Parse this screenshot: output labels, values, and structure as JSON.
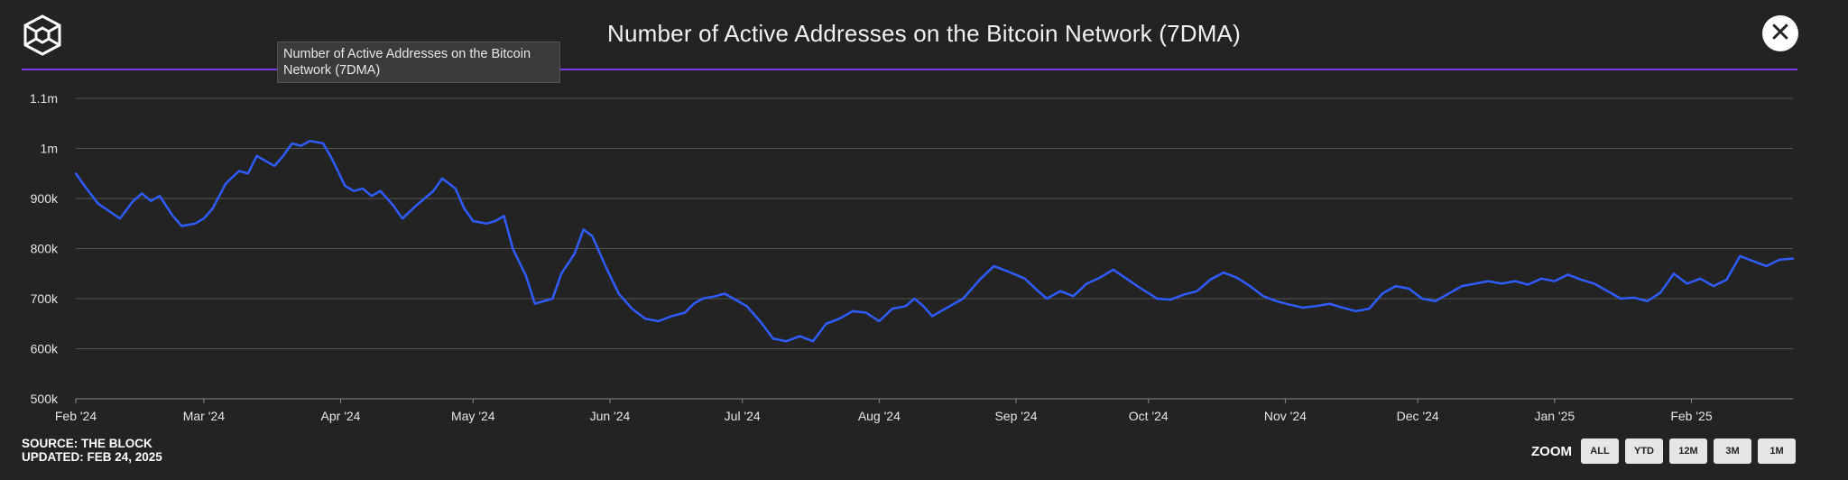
{
  "header": {
    "title": "Number of Active Addresses on the Bitcoin Network (7DMA)",
    "close_icon": "close-icon",
    "logo_icon": "the-block-logo-icon"
  },
  "tooltip": {
    "text": "Number of Active Addresses on the Bitcoin Network (7DMA)"
  },
  "footer": {
    "source": "SOURCE: THE BLOCK",
    "updated": "UPDATED: FEB 24, 2025",
    "zoom_label": "ZOOM",
    "zoom_buttons": [
      "ALL",
      "YTD",
      "12M",
      "3M",
      "1M"
    ]
  },
  "colors": {
    "line": "#2f5cff",
    "accent": "#7c3aed",
    "background": "#232323",
    "grid": "#555555"
  },
  "chart_data": {
    "type": "line",
    "title": "Number of Active Addresses on the Bitcoin Network (7DMA)",
    "xlabel": "",
    "ylabel": "",
    "ylim": [
      500000,
      1100000
    ],
    "ytick_values": [
      500000,
      600000,
      700000,
      800000,
      900000,
      1000000,
      1100000
    ],
    "ytick_labels": [
      "500k",
      "600k",
      "700k",
      "800k",
      "900k",
      "1m",
      "1.1m"
    ],
    "xlim": [
      "2024-02-01",
      "2025-02-24"
    ],
    "xtick_dates": [
      "2024-02-01",
      "2024-03-01",
      "2024-04-01",
      "2024-05-01",
      "2024-06-01",
      "2024-07-01",
      "2024-08-01",
      "2024-09-01",
      "2024-10-01",
      "2024-11-01",
      "2024-12-01",
      "2025-01-01",
      "2025-02-01"
    ],
    "xtick_labels": [
      "Feb '24",
      "Mar '24",
      "Apr '24",
      "May '24",
      "Jun '24",
      "Jul '24",
      "Aug '24",
      "Sep '24",
      "Oct '24",
      "Nov '24",
      "Dec '24",
      "Jan '25",
      "Feb '25"
    ],
    "grid": true,
    "series": [
      {
        "color": "#2f5cff",
        "points": [
          [
            "2024-02-01",
            950000
          ],
          [
            "2024-02-03",
            925000
          ],
          [
            "2024-02-06",
            890000
          ],
          [
            "2024-02-09",
            872000
          ],
          [
            "2024-02-11",
            860000
          ],
          [
            "2024-02-14",
            895000
          ],
          [
            "2024-02-16",
            910000
          ],
          [
            "2024-02-18",
            895000
          ],
          [
            "2024-02-20",
            905000
          ],
          [
            "2024-02-23",
            865000
          ],
          [
            "2024-02-25",
            845000
          ],
          [
            "2024-02-28",
            850000
          ],
          [
            "2024-03-01",
            860000
          ],
          [
            "2024-03-03",
            880000
          ],
          [
            "2024-03-06",
            930000
          ],
          [
            "2024-03-09",
            955000
          ],
          [
            "2024-03-11",
            950000
          ],
          [
            "2024-03-13",
            985000
          ],
          [
            "2024-03-15",
            975000
          ],
          [
            "2024-03-17",
            965000
          ],
          [
            "2024-03-19",
            985000
          ],
          [
            "2024-03-21",
            1010000
          ],
          [
            "2024-03-23",
            1005000
          ],
          [
            "2024-03-25",
            1015000
          ],
          [
            "2024-03-28",
            1010000
          ],
          [
            "2024-03-30",
            980000
          ],
          [
            "2024-04-02",
            925000
          ],
          [
            "2024-04-04",
            915000
          ],
          [
            "2024-04-06",
            920000
          ],
          [
            "2024-04-08",
            905000
          ],
          [
            "2024-04-10",
            915000
          ],
          [
            "2024-04-13",
            885000
          ],
          [
            "2024-04-15",
            860000
          ],
          [
            "2024-04-18",
            885000
          ],
          [
            "2024-04-20",
            900000
          ],
          [
            "2024-04-22",
            915000
          ],
          [
            "2024-04-24",
            940000
          ],
          [
            "2024-04-27",
            920000
          ],
          [
            "2024-04-29",
            880000
          ],
          [
            "2024-05-01",
            855000
          ],
          [
            "2024-05-04",
            850000
          ],
          [
            "2024-05-06",
            855000
          ],
          [
            "2024-05-08",
            865000
          ],
          [
            "2024-05-10",
            800000
          ],
          [
            "2024-05-13",
            745000
          ],
          [
            "2024-05-15",
            690000
          ],
          [
            "2024-05-17",
            695000
          ],
          [
            "2024-05-19",
            700000
          ],
          [
            "2024-05-21",
            750000
          ],
          [
            "2024-05-24",
            790000
          ],
          [
            "2024-05-26",
            838000
          ],
          [
            "2024-05-28",
            825000
          ],
          [
            "2024-05-31",
            765000
          ],
          [
            "2024-06-03",
            710000
          ],
          [
            "2024-06-06",
            680000
          ],
          [
            "2024-06-09",
            660000
          ],
          [
            "2024-06-12",
            655000
          ],
          [
            "2024-06-15",
            665000
          ],
          [
            "2024-06-18",
            672000
          ],
          [
            "2024-06-20",
            690000
          ],
          [
            "2024-06-22",
            700000
          ],
          [
            "2024-06-25",
            705000
          ],
          [
            "2024-06-27",
            710000
          ],
          [
            "2024-06-29",
            700000
          ],
          [
            "2024-07-02",
            685000
          ],
          [
            "2024-07-05",
            655000
          ],
          [
            "2024-07-08",
            620000
          ],
          [
            "2024-07-11",
            615000
          ],
          [
            "2024-07-14",
            625000
          ],
          [
            "2024-07-17",
            615000
          ],
          [
            "2024-07-20",
            650000
          ],
          [
            "2024-07-23",
            660000
          ],
          [
            "2024-07-26",
            675000
          ],
          [
            "2024-07-29",
            672000
          ],
          [
            "2024-08-01",
            655000
          ],
          [
            "2024-08-04",
            680000
          ],
          [
            "2024-08-07",
            685000
          ],
          [
            "2024-08-09",
            700000
          ],
          [
            "2024-08-11",
            685000
          ],
          [
            "2024-08-13",
            665000
          ],
          [
            "2024-08-16",
            680000
          ],
          [
            "2024-08-20",
            700000
          ],
          [
            "2024-08-24",
            740000
          ],
          [
            "2024-08-27",
            765000
          ],
          [
            "2024-08-30",
            755000
          ],
          [
            "2024-09-03",
            740000
          ],
          [
            "2024-09-06",
            715000
          ],
          [
            "2024-09-08",
            700000
          ],
          [
            "2024-09-11",
            715000
          ],
          [
            "2024-09-14",
            705000
          ],
          [
            "2024-09-17",
            730000
          ],
          [
            "2024-09-20",
            742000
          ],
          [
            "2024-09-23",
            758000
          ],
          [
            "2024-09-26",
            740000
          ],
          [
            "2024-09-29",
            722000
          ],
          [
            "2024-10-03",
            700000
          ],
          [
            "2024-10-06",
            698000
          ],
          [
            "2024-10-09",
            708000
          ],
          [
            "2024-10-12",
            715000
          ],
          [
            "2024-10-15",
            738000
          ],
          [
            "2024-10-18",
            752000
          ],
          [
            "2024-10-21",
            742000
          ],
          [
            "2024-10-24",
            725000
          ],
          [
            "2024-10-27",
            705000
          ],
          [
            "2024-10-30",
            695000
          ],
          [
            "2024-11-02",
            688000
          ],
          [
            "2024-11-05",
            682000
          ],
          [
            "2024-11-08",
            685000
          ],
          [
            "2024-11-11",
            690000
          ],
          [
            "2024-11-14",
            682000
          ],
          [
            "2024-11-17",
            675000
          ],
          [
            "2024-11-20",
            680000
          ],
          [
            "2024-11-23",
            710000
          ],
          [
            "2024-11-26",
            725000
          ],
          [
            "2024-11-29",
            720000
          ],
          [
            "2024-12-02",
            700000
          ],
          [
            "2024-12-05",
            695000
          ],
          [
            "2024-12-08",
            710000
          ],
          [
            "2024-12-11",
            725000
          ],
          [
            "2024-12-14",
            730000
          ],
          [
            "2024-12-17",
            735000
          ],
          [
            "2024-12-20",
            730000
          ],
          [
            "2024-12-23",
            735000
          ],
          [
            "2024-12-26",
            728000
          ],
          [
            "2024-12-29",
            740000
          ],
          [
            "2025-01-01",
            735000
          ],
          [
            "2025-01-04",
            748000
          ],
          [
            "2025-01-07",
            738000
          ],
          [
            "2025-01-10",
            730000
          ],
          [
            "2025-01-13",
            715000
          ],
          [
            "2025-01-16",
            700000
          ],
          [
            "2025-01-19",
            702000
          ],
          [
            "2025-01-22",
            695000
          ],
          [
            "2025-01-25",
            712000
          ],
          [
            "2025-01-28",
            750000
          ],
          [
            "2025-01-31",
            730000
          ],
          [
            "2025-02-03",
            740000
          ],
          [
            "2025-02-06",
            725000
          ],
          [
            "2025-02-09",
            738000
          ],
          [
            "2025-02-12",
            785000
          ],
          [
            "2025-02-15",
            775000
          ],
          [
            "2025-02-18",
            765000
          ],
          [
            "2025-02-21",
            778000
          ],
          [
            "2025-02-24",
            780000
          ]
        ]
      }
    ]
  }
}
